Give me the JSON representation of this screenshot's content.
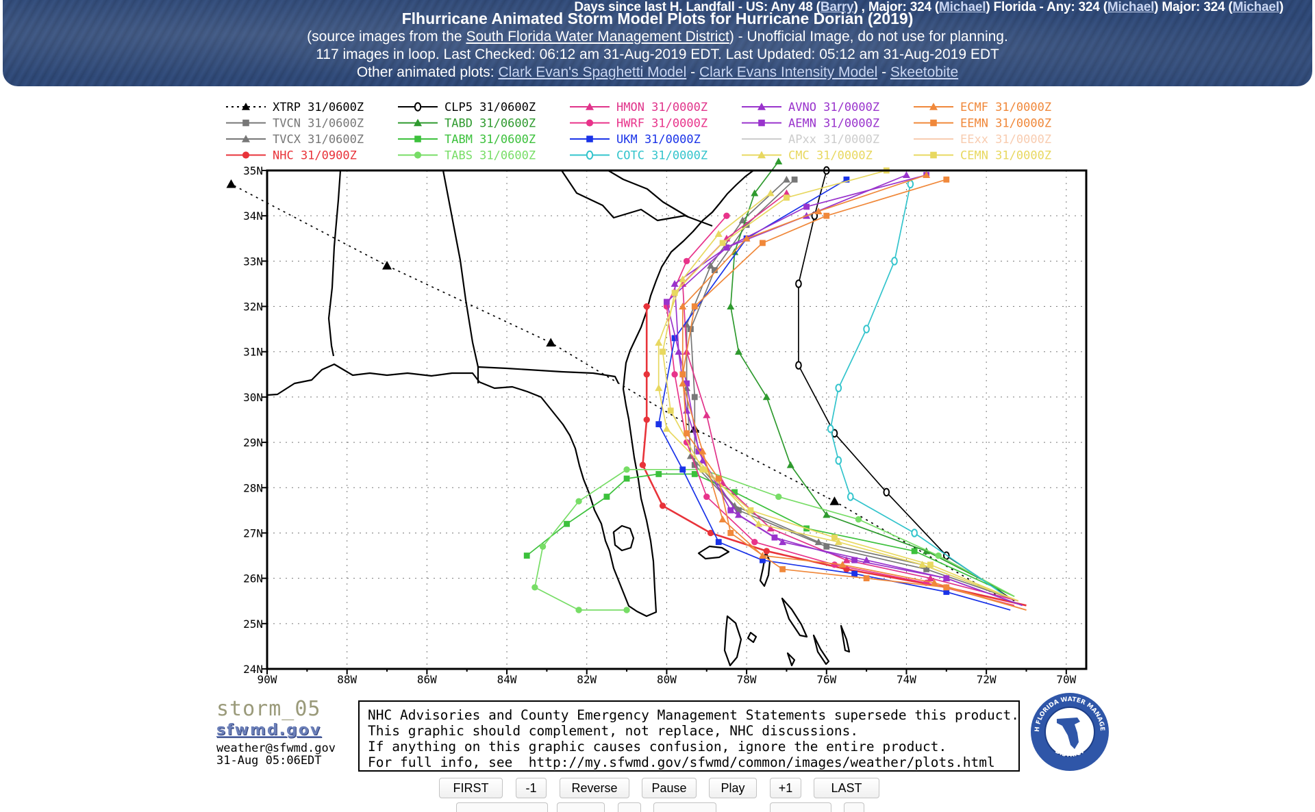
{
  "header": {
    "ticker": {
      "label": "Days since last H. Landfall - US: Any 48 (",
      "us_any_link": "Barry",
      "major_label": ") , Major: 324 (",
      "us_major_link": "Michael",
      "florida_label": ") Florida - Any: 324 (",
      "fl_any_link": "Michael",
      "fl_major_label": ") Major: 324 (",
      "fl_major_link": "Michael",
      "end": ")"
    },
    "title": "Flhurricane Animated Storm Model Plots for Hurricane Dorian (2019)",
    "source_pre": "(source images from the ",
    "source_link": "South Florida Water Management District",
    "source_post": ") - Unofficial Image, do not use for planning.",
    "status": "117 images in loop. Last Checked: 06:12 am 31-Aug-2019 EDT. Last Updated: 05:12 am 31-Aug-2019 EDT",
    "other_label": "Other animated plots: ",
    "other_links": [
      "Clark Evan's Spaghetti Model",
      "Clark Evans Intensity Model",
      "Skeetobite"
    ],
    "separator": " - "
  },
  "legend": [
    {
      "code": "XTRP",
      "time": "31/0600Z",
      "color": "#000000",
      "marker": "tri",
      "dash": true
    },
    {
      "code": "TVCN",
      "time": "31/0600Z",
      "color": "#777777",
      "marker": "sq"
    },
    {
      "code": "TVCX",
      "time": "31/0600Z",
      "color": "#777777",
      "marker": "tri"
    },
    {
      "code": "NHC",
      "time": "31/0900Z",
      "color": "#e8333a",
      "marker": "dot"
    },
    {
      "code": "CLP5",
      "time": "31/0600Z",
      "color": "#000000",
      "marker": "ring"
    },
    {
      "code": "TABD",
      "time": "31/0600Z",
      "color": "#2e9a2e",
      "marker": "tri"
    },
    {
      "code": "TABM",
      "time": "31/0600Z",
      "color": "#3cc13c",
      "marker": "sq"
    },
    {
      "code": "TABS",
      "time": "31/0600Z",
      "color": "#77dd66",
      "marker": "dot"
    },
    {
      "code": "HMON",
      "time": "31/0000Z",
      "color": "#e0338a",
      "marker": "tri"
    },
    {
      "code": "HWRF",
      "time": "31/0000Z",
      "color": "#e8338a",
      "marker": "dot"
    },
    {
      "code": "UKM",
      "time": "31/0000Z",
      "color": "#1a33e8",
      "marker": "sq"
    },
    {
      "code": "COTC",
      "time": "31/0000Z",
      "color": "#33c4cc",
      "marker": "ring"
    },
    {
      "code": "AVNO",
      "time": "31/0000Z",
      "color": "#9933cc",
      "marker": "tri"
    },
    {
      "code": "AEMN",
      "time": "31/0000Z",
      "color": "#9933cc",
      "marker": "sq"
    },
    {
      "code": "APxx",
      "time": "31/0000Z",
      "color": "#cccccc",
      "marker": "none"
    },
    {
      "code": "CMC",
      "time": "31/0000Z",
      "color": "#e8d860",
      "marker": "tri"
    },
    {
      "code": "ECMF",
      "time": "31/0000Z",
      "color": "#f0883a",
      "marker": "tri"
    },
    {
      "code": "EEMN",
      "time": "31/0000Z",
      "color": "#f0883a",
      "marker": "sq"
    },
    {
      "code": "EExx",
      "time": "31/0000Z",
      "color": "#f8ccb0",
      "marker": "none"
    },
    {
      "code": "CEMN",
      "time": "31/0000Z",
      "color": "#e8d860",
      "marker": "sq"
    }
  ],
  "map": {
    "lat_range": [
      24,
      35
    ],
    "lon_range": [
      -90,
      -69.5
    ],
    "lat_labels": [
      "35N",
      "34N",
      "33N",
      "32N",
      "31N",
      "30N",
      "29N",
      "28N",
      "27N",
      "26N",
      "25N",
      "24N"
    ],
    "lon_labels": [
      "90W",
      "88W",
      "86W",
      "84W",
      "82W",
      "80W",
      "78W",
      "76W",
      "74W",
      "72W",
      "70W"
    ],
    "tracks": [
      {
        "model": "XTRP",
        "color": "#000000",
        "dash": true,
        "marker": "tri",
        "points": [
          [
            -71.5,
            25.5
          ],
          [
            -75.8,
            27.7
          ],
          [
            -79.3,
            29.3
          ],
          [
            -82.9,
            31.2
          ],
          [
            -87.0,
            32.9
          ],
          [
            -90.9,
            34.7
          ]
        ]
      },
      {
        "model": "NHC",
        "color": "#e8333a",
        "marker": "dot",
        "points": [
          [
            -71.0,
            25.4
          ],
          [
            -73.0,
            25.8
          ],
          [
            -75.5,
            26.2
          ],
          [
            -77.5,
            26.6
          ],
          [
            -78.9,
            27.0
          ],
          [
            -80.1,
            27.6
          ],
          [
            -80.6,
            28.5
          ],
          [
            -80.5,
            29.5
          ],
          [
            -80.5,
            30.5
          ],
          [
            -80.5,
            32.0
          ]
        ]
      },
      {
        "model": "CLP5",
        "color": "#000000",
        "marker": "ring",
        "points": [
          [
            -71.3,
            25.5
          ],
          [
            -73.0,
            26.5
          ],
          [
            -74.5,
            27.9
          ],
          [
            -75.8,
            29.2
          ],
          [
            -76.7,
            30.7
          ],
          [
            -76.7,
            32.5
          ],
          [
            -76.3,
            34.0
          ],
          [
            -76.0,
            35.0
          ]
        ]
      },
      {
        "model": "TVCN",
        "color": "#777777",
        "marker": "sq",
        "points": [
          [
            -71.2,
            25.5
          ],
          [
            -73.5,
            26.2
          ],
          [
            -76.0,
            26.7
          ],
          [
            -78.2,
            27.5
          ],
          [
            -79.3,
            28.5
          ],
          [
            -79.3,
            30.0
          ],
          [
            -79.4,
            31.5
          ],
          [
            -78.8,
            32.8
          ],
          [
            -78.0,
            33.8
          ],
          [
            -76.8,
            34.8
          ]
        ]
      },
      {
        "model": "TVCX",
        "color": "#777777",
        "marker": "tri",
        "points": [
          [
            -71.2,
            25.5
          ],
          [
            -73.6,
            26.3
          ],
          [
            -76.2,
            26.8
          ],
          [
            -78.3,
            27.6
          ],
          [
            -79.4,
            28.7
          ],
          [
            -79.5,
            30.2
          ],
          [
            -79.5,
            31.6
          ],
          [
            -78.9,
            32.9
          ],
          [
            -78.1,
            33.9
          ],
          [
            -77.0,
            34.8
          ]
        ]
      },
      {
        "model": "TABD",
        "color": "#2e9a2e",
        "marker": "tri",
        "points": [
          [
            -71.3,
            25.6
          ],
          [
            -73.5,
            26.6
          ],
          [
            -76.0,
            27.4
          ],
          [
            -76.9,
            28.5
          ],
          [
            -77.5,
            30.0
          ],
          [
            -78.2,
            31.0
          ],
          [
            -78.4,
            32.0
          ],
          [
            -78.3,
            33.2
          ],
          [
            -77.8,
            34.5
          ],
          [
            -77.2,
            35.2
          ]
        ]
      },
      {
        "model": "TABM",
        "color": "#3cc13c",
        "marker": "sq",
        "points": [
          [
            -71.3,
            25.6
          ],
          [
            -73.8,
            26.6
          ],
          [
            -76.5,
            27.1
          ],
          [
            -78.3,
            27.9
          ],
          [
            -79.3,
            28.3
          ],
          [
            -80.2,
            28.3
          ],
          [
            -81.0,
            28.2
          ],
          [
            -81.5,
            27.8
          ],
          [
            -82.5,
            27.2
          ],
          [
            -83.5,
            26.5
          ]
        ]
      },
      {
        "model": "TABS",
        "color": "#77dd66",
        "marker": "dot",
        "points": [
          [
            -71.3,
            25.6
          ],
          [
            -73.2,
            26.5
          ],
          [
            -75.2,
            27.3
          ],
          [
            -77.2,
            27.8
          ],
          [
            -79.1,
            28.4
          ],
          [
            -81.0,
            28.4
          ],
          [
            -82.2,
            27.7
          ],
          [
            -83.1,
            26.7
          ],
          [
            -83.3,
            25.8
          ],
          [
            -82.2,
            25.3
          ],
          [
            -81.0,
            25.3
          ]
        ]
      },
      {
        "model": "HMON",
        "color": "#e0338a",
        "marker": "tri",
        "points": [
          [
            -71.2,
            25.5
          ],
          [
            -73.4,
            26.0
          ],
          [
            -75.5,
            26.4
          ],
          [
            -77.4,
            27.1
          ],
          [
            -78.6,
            28.1
          ],
          [
            -79.0,
            29.6
          ],
          [
            -79.5,
            31.0
          ],
          [
            -79.6,
            32.5
          ],
          [
            -78.5,
            33.5
          ],
          [
            -77.0,
            34.5
          ]
        ]
      },
      {
        "model": "HWRF",
        "color": "#e8338a",
        "marker": "dot",
        "points": [
          [
            -71.3,
            25.4
          ],
          [
            -73.5,
            25.9
          ],
          [
            -75.8,
            26.3
          ],
          [
            -77.8,
            26.8
          ],
          [
            -79.0,
            27.8
          ],
          [
            -79.5,
            29.0
          ],
          [
            -79.8,
            30.5
          ],
          [
            -80.0,
            32.0
          ],
          [
            -79.5,
            33.0
          ],
          [
            -78.5,
            34.0
          ]
        ]
      },
      {
        "model": "UKM",
        "color": "#1a33e8",
        "marker": "sq",
        "points": [
          [
            -71.4,
            25.3
          ],
          [
            -73.0,
            25.7
          ],
          [
            -75.3,
            26.1
          ],
          [
            -77.6,
            26.4
          ],
          [
            -78.7,
            26.8
          ],
          [
            -79.6,
            28.4
          ],
          [
            -80.2,
            29.4
          ],
          [
            -79.8,
            31.3
          ],
          [
            -78.0,
            33.5
          ],
          [
            -75.5,
            34.8
          ]
        ]
      },
      {
        "model": "COTC",
        "color": "#33c4cc",
        "marker": "ring",
        "points": [
          [
            -71.5,
            25.6
          ],
          [
            -73.8,
            27.0
          ],
          [
            -75.4,
            27.8
          ],
          [
            -75.7,
            28.6
          ],
          [
            -75.9,
            29.3
          ],
          [
            -75.7,
            30.2
          ],
          [
            -75.0,
            31.5
          ],
          [
            -74.3,
            33.0
          ],
          [
            -73.9,
            34.7
          ]
        ]
      },
      {
        "model": "AVNO",
        "color": "#9933cc",
        "marker": "tri",
        "points": [
          [
            -71.1,
            25.4
          ],
          [
            -73.0,
            26.0
          ],
          [
            -75.0,
            26.4
          ],
          [
            -77.1,
            26.8
          ],
          [
            -78.2,
            27.4
          ],
          [
            -79.1,
            28.6
          ],
          [
            -79.5,
            29.7
          ],
          [
            -79.7,
            31.0
          ],
          [
            -79.8,
            32.5
          ],
          [
            -78.5,
            33.3
          ],
          [
            -76.5,
            34.0
          ],
          [
            -74.0,
            34.9
          ]
        ]
      },
      {
        "model": "AEMN",
        "color": "#9933cc",
        "marker": "sq",
        "points": [
          [
            -71.1,
            25.4
          ],
          [
            -73.0,
            26.0
          ],
          [
            -75.3,
            26.4
          ],
          [
            -77.3,
            26.9
          ],
          [
            -78.4,
            27.5
          ],
          [
            -79.2,
            28.8
          ],
          [
            -79.5,
            30.3
          ],
          [
            -80.0,
            32.1
          ],
          [
            -78.5,
            33.3
          ],
          [
            -76.5,
            34.2
          ],
          [
            -73.5,
            34.9
          ]
        ]
      },
      {
        "model": "CMC",
        "color": "#e8d860",
        "marker": "tri",
        "points": [
          [
            -71.2,
            25.5
          ],
          [
            -73.6,
            26.3
          ],
          [
            -75.7,
            26.8
          ],
          [
            -77.7,
            27.2
          ],
          [
            -79.0,
            28.4
          ],
          [
            -80.0,
            29.3
          ],
          [
            -80.2,
            30.2
          ],
          [
            -80.2,
            31.2
          ],
          [
            -79.6,
            32.6
          ],
          [
            -78.7,
            33.6
          ],
          [
            -77.4,
            34.5
          ]
        ]
      },
      {
        "model": "CEMN",
        "color": "#e8d860",
        "marker": "sq",
        "points": [
          [
            -71.2,
            25.5
          ],
          [
            -73.4,
            26.3
          ],
          [
            -75.8,
            26.9
          ],
          [
            -77.9,
            27.5
          ],
          [
            -79.1,
            28.4
          ],
          [
            -79.9,
            29.7
          ],
          [
            -80.1,
            31.0
          ],
          [
            -79.8,
            32.3
          ],
          [
            -78.6,
            33.4
          ],
          [
            -77.0,
            34.4
          ],
          [
            -74.5,
            35.0
          ]
        ]
      },
      {
        "model": "ECMF",
        "color": "#f0883a",
        "marker": "tri",
        "points": [
          [
            -71.0,
            25.3
          ],
          [
            -73.3,
            25.9
          ],
          [
            -75.6,
            26.3
          ],
          [
            -77.6,
            26.5
          ],
          [
            -78.6,
            27.3
          ],
          [
            -79.1,
            28.8
          ],
          [
            -79.6,
            30.3
          ],
          [
            -79.6,
            32.0
          ],
          [
            -78.0,
            33.5
          ],
          [
            -76.2,
            34.1
          ],
          [
            -73.5,
            34.9
          ]
        ]
      },
      {
        "model": "EEMN",
        "color": "#f0883a",
        "marker": "sq",
        "points": [
          [
            -71.0,
            25.3
          ],
          [
            -73.0,
            25.8
          ],
          [
            -75.0,
            26.0
          ],
          [
            -77.1,
            26.2
          ],
          [
            -78.4,
            27.0
          ],
          [
            -78.7,
            28.2
          ],
          [
            -79.5,
            29.2
          ],
          [
            -79.6,
            30.5
          ],
          [
            -79.3,
            32.0
          ],
          [
            -77.6,
            33.4
          ],
          [
            -76.0,
            34.0
          ],
          [
            -73.0,
            34.8
          ]
        ]
      }
    ]
  },
  "footer": {
    "storm_id": "storm_05",
    "sfwmd_logo": "sfwmd.gov",
    "email": "weather@sfwmd.gov",
    "timestamp": "31-Aug 05:06EDT",
    "notice_lines": [
      "NHC Advisories and County Emergency Management Statements supersede this product.",
      "This graphic should complement, not replace, NHC discussions.",
      "If anything on this graphic causes confusion, ignore the entire product.",
      "For full info, see  http://my.sfwmd.gov/sfwmd/common/images/weather/plots.html"
    ],
    "seal_top": "SOUTH FLORIDA WATER MANAGEMENT",
    "seal_bottom": "DISTRICT"
  },
  "controls": {
    "buttons": [
      "FIRST",
      "-1",
      "Reverse",
      "Pause",
      "Play",
      "+1",
      "LAST"
    ]
  }
}
